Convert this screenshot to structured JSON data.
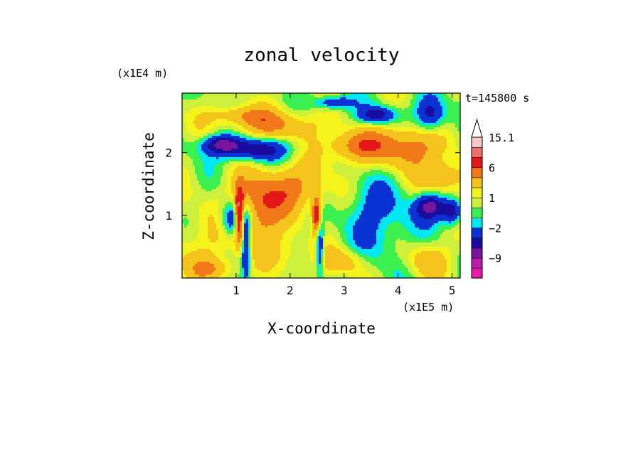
{
  "chart_data": {
    "type": "heatmap",
    "title": "zonal velocity",
    "xlabel": "X-coordinate",
    "ylabel": "Z-coordinate",
    "x_unit": "(x1E5 m)",
    "y_unit": "(x1E4 m)",
    "time_label": "t=145800 s",
    "xlim": [
      0,
      5.15
    ],
    "ylim": [
      0,
      2.95
    ],
    "x_ticks": [
      1,
      2,
      3,
      4,
      5
    ],
    "y_ticks": [
      1,
      2
    ],
    "x_tick_labels": [
      "1",
      "2",
      "3",
      "4",
      "5"
    ],
    "y_tick_labels": [
      "1",
      "2"
    ],
    "colorbar": {
      "levels": [
        -14,
        -12,
        -9,
        -6,
        -4,
        -2,
        -1,
        0,
        1,
        2,
        4,
        6,
        9,
        12,
        15.1
      ],
      "tick_labels": [
        {
          "value": 15.1,
          "label": "15.1"
        },
        {
          "value": 6,
          "label": "6"
        },
        {
          "value": 1,
          "label": "1"
        },
        {
          "value": -2,
          "label": "−2"
        },
        {
          "value": -9,
          "label": "−9"
        }
      ],
      "colors": [
        "#e81ca8",
        "#b81ca8",
        "#78169e",
        "#1a0c9e",
        "#0b33d4",
        "#00e8f4",
        "#3cf050",
        "#ccf03c",
        "#f4f41c",
        "#f4c41c",
        "#f07818",
        "#e41818",
        "#ee6e6e",
        "#f8c8c8"
      ],
      "extend": "max"
    },
    "features": [
      {
        "cx": 0.28,
        "cz": 0.55,
        "sx": 0.5,
        "sz": 0.4,
        "amp": 1.6
      },
      {
        "cx": 1.0,
        "cz": 0.95,
        "sx": 0.2,
        "sz": 0.2,
        "amp": -9
      },
      {
        "cx": 1.06,
        "cz": 1.0,
        "sx": 0.06,
        "sz": 0.28,
        "amp": 12
      },
      {
        "cx": 1.18,
        "cz": 0.45,
        "sx": 0.06,
        "sz": 0.35,
        "amp": -6
      },
      {
        "cx": 1.35,
        "cz": 1.05,
        "sx": 0.35,
        "sz": 0.35,
        "amp": 6
      },
      {
        "cx": 2.5,
        "cz": 1.0,
        "sx": 0.06,
        "sz": 0.22,
        "amp": 9
      },
      {
        "cx": 2.55,
        "cz": 0.55,
        "sx": 0.05,
        "sz": 0.35,
        "amp": -6
      },
      {
        "cx": 2.05,
        "cz": 1.45,
        "sx": 0.45,
        "sz": 0.25,
        "amp": 4
      },
      {
        "cx": 3.2,
        "cz": 2.1,
        "sx": 0.4,
        "sz": 0.18,
        "amp": 5
      },
      {
        "cx": 1.25,
        "cz": 2.05,
        "sx": 0.5,
        "sz": 0.13,
        "amp": -6
      },
      {
        "cx": 0.7,
        "cz": 2.15,
        "sx": 0.25,
        "sz": 0.1,
        "amp": -5
      },
      {
        "cx": 1.7,
        "cz": 2.45,
        "sx": 0.55,
        "sz": 0.16,
        "amp": 4
      },
      {
        "cx": 1.0,
        "cz": 2.6,
        "sx": 0.35,
        "sz": 0.1,
        "amp": 3
      },
      {
        "cx": 3.75,
        "cz": 0.8,
        "sx": 0.5,
        "sz": 0.5,
        "amp": -2.4
      },
      {
        "cx": 3.4,
        "cz": 1.2,
        "sx": 0.3,
        "sz": 0.3,
        "amp": -1.5
      },
      {
        "cx": 4.6,
        "cz": 1.15,
        "sx": 0.2,
        "sz": 0.15,
        "amp": -7
      },
      {
        "cx": 5.0,
        "cz": 1.05,
        "sx": 0.12,
        "sz": 0.15,
        "amp": -6
      },
      {
        "cx": 4.85,
        "cz": 1.6,
        "sx": 0.3,
        "sz": 0.2,
        "amp": 4
      },
      {
        "cx": 4.2,
        "cz": 2.1,
        "sx": 0.4,
        "sz": 0.25,
        "amp": 5
      },
      {
        "cx": 4.6,
        "cz": 2.6,
        "sx": 0.2,
        "sz": 0.2,
        "amp": -6
      },
      {
        "cx": 3.6,
        "cz": 2.6,
        "sx": 0.25,
        "sz": 0.1,
        "amp": -6
      },
      {
        "cx": 2.8,
        "cz": 2.8,
        "sx": 0.25,
        "sz": 0.08,
        "amp": -5
      },
      {
        "cx": 4.5,
        "cz": 0.3,
        "sx": 0.3,
        "sz": 0.2,
        "amp": 3
      },
      {
        "cx": 3.0,
        "cz": 0.25,
        "sx": 0.3,
        "sz": 0.15,
        "amp": 3
      },
      {
        "cx": 0.6,
        "cz": 0.15,
        "sx": 0.3,
        "sz": 0.12,
        "amp": 3
      },
      {
        "cx": 2.0,
        "cz": 0.4,
        "sx": 0.3,
        "sz": 0.2,
        "amp": 1.8
      }
    ],
    "background_wave": {
      "amp": 1.6,
      "kx": 5.0,
      "kz": 4.0
    }
  }
}
